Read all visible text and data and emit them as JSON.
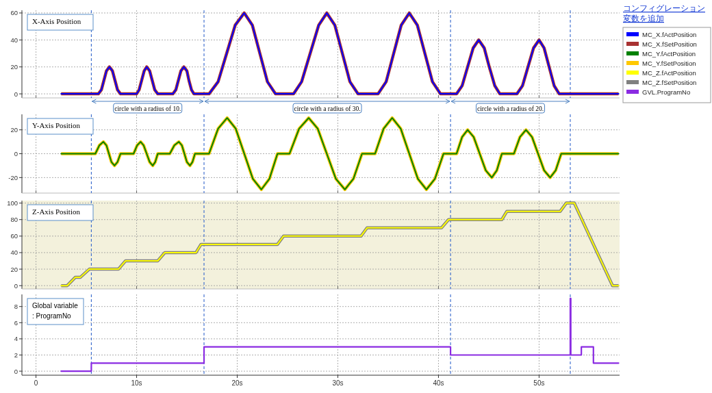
{
  "chart_data": [
    {
      "type": "line",
      "title": "X-Axis Position",
      "xlim": [
        -1.4,
        58
      ],
      "ylim": [
        -3,
        62
      ],
      "xticks": [
        {
          "value": 0,
          "label": null
        },
        {
          "value": 10,
          "label": null
        },
        {
          "value": 20,
          "label": null
        },
        {
          "value": 30,
          "label": null
        },
        {
          "value": 40,
          "label": null
        },
        {
          "value": 50,
          "label": null
        }
      ],
      "yticks": [
        0,
        20,
        40,
        60
      ],
      "tick_labels": "y",
      "grid": true,
      "legend": "right",
      "x": [
        2.5,
        6.2,
        6.5,
        6.75,
        7.0,
        7.3,
        7.6,
        7.85,
        8.1,
        8.4,
        10.0,
        10.25,
        10.5,
        10.75,
        11.0,
        11.3,
        11.55,
        11.8,
        12.1,
        13.6,
        13.9,
        14.15,
        14.4,
        14.7,
        15.0,
        15.2,
        15.45,
        15.7,
        17.2,
        18.1,
        18.95,
        19.8,
        20.7,
        21.5,
        22.25,
        23.0,
        23.8,
        25.6,
        26.4,
        27.25,
        28.1,
        28.9,
        29.7,
        30.45,
        31.2,
        32.0,
        34.0,
        34.8,
        35.55,
        36.3,
        37.1,
        37.9,
        38.65,
        39.4,
        40.2,
        41.8,
        42.35,
        42.9,
        43.45,
        44.0,
        44.55,
        45.05,
        45.6,
        46.1,
        47.8,
        48.35,
        48.9,
        49.45,
        50.0,
        50.5,
        51.0,
        51.5,
        52.0,
        57.9
      ],
      "series": [
        {
          "name": "MC_X.fSetPosition",
          "color": "#a83232",
          "values": [
            0,
            0,
            3,
            10,
            17,
            20,
            17,
            10,
            3,
            0,
            0,
            3,
            10,
            17,
            20,
            17,
            10,
            3,
            0,
            0,
            3,
            10,
            17,
            20,
            17,
            10,
            3,
            0,
            0,
            9,
            30,
            51,
            60,
            51,
            30,
            9,
            0,
            0,
            9,
            30,
            51,
            60,
            51,
            30,
            9,
            0,
            0,
            9,
            30,
            51,
            60,
            51,
            30,
            9,
            0,
            0,
            6,
            20,
            34,
            40,
            34,
            20,
            6,
            0,
            0,
            6,
            20,
            34,
            40,
            34,
            20,
            6,
            0,
            0
          ]
        },
        {
          "name": "MC_X.fActPosition",
          "color": "#0000ff",
          "values": [
            0,
            0,
            3,
            10,
            17,
            20,
            17,
            10,
            3,
            0,
            0,
            3,
            10,
            17,
            20,
            17,
            10,
            3,
            0,
            0,
            3,
            10,
            17,
            20,
            17,
            10,
            3,
            0,
            0,
            9,
            30,
            51,
            60,
            51,
            30,
            9,
            0,
            0,
            9,
            30,
            51,
            60,
            51,
            30,
            9,
            0,
            0,
            9,
            30,
            51,
            60,
            51,
            30,
            9,
            0,
            0,
            6,
            20,
            34,
            40,
            34,
            20,
            6,
            0,
            0,
            6,
            20,
            34,
            40,
            34,
            20,
            6,
            0,
            0
          ]
        }
      ],
      "ref_lines": [
        {
          "axis": "x",
          "value": 5.5,
          "color": "#3366cc",
          "line_style": "dashed"
        },
        {
          "axis": "x",
          "value": 16.7,
          "color": "#3366cc",
          "line_style": "dashed"
        },
        {
          "axis": "x",
          "value": 41.2,
          "color": "#3366cc",
          "line_style": "dashed"
        },
        {
          "axis": "x",
          "value": 53.1,
          "color": "#3366cc",
          "line_style": "dashed"
        }
      ],
      "annotations": [
        "コンフィグレーション",
        "変数を追加"
      ]
    },
    {
      "type": "line",
      "title": "Y-Axis Position",
      "xlim": [
        -1.4,
        58
      ],
      "ylim": [
        -33,
        33
      ],
      "xticks": [
        {
          "value": 0,
          "label": null
        },
        {
          "value": 10,
          "label": null
        },
        {
          "value": 20,
          "label": null
        },
        {
          "value": 30,
          "label": null
        },
        {
          "value": 40,
          "label": null
        },
        {
          "value": 50,
          "label": null
        }
      ],
      "yticks": [
        -20,
        0,
        20
      ],
      "tick_labels": "y",
      "grid": true,
      "legend": "right",
      "x": [
        2.5,
        5.9,
        6.3,
        6.7,
        7.0,
        7.25,
        7.5,
        7.8,
        8.1,
        8.4,
        9.7,
        10.05,
        10.4,
        10.7,
        11.0,
        11.3,
        11.6,
        11.85,
        12.1,
        13.3,
        13.75,
        14.2,
        14.5,
        14.75,
        15.0,
        15.3,
        15.55,
        15.8,
        17.2,
        18.1,
        19.0,
        19.85,
        20.7,
        21.55,
        22.4,
        23.2,
        24.0,
        25.2,
        26.15,
        27.1,
        28.0,
        28.9,
        29.8,
        30.7,
        31.55,
        32.4,
        33.7,
        34.55,
        35.4,
        36.25,
        37.1,
        37.95,
        38.8,
        39.65,
        40.5,
        41.8,
        42.35,
        42.9,
        43.5,
        44.1,
        44.7,
        45.3,
        45.8,
        46.3,
        47.5,
        48.1,
        48.7,
        49.3,
        49.9,
        50.5,
        51.1,
        51.65,
        52.2,
        57.9
      ],
      "series": [
        {
          "name": "MC_Y.fSetPosition",
          "color": "#ffc800",
          "values": [
            0,
            0,
            7,
            10,
            7,
            0,
            -7,
            -10,
            -7,
            0,
            0,
            7,
            10,
            7,
            0,
            -7,
            -10,
            -7,
            0,
            0,
            7,
            10,
            7,
            0,
            -7,
            -10,
            -7,
            0,
            0,
            21,
            30,
            21,
            0,
            -21,
            -30,
            -21,
            0,
            0,
            21,
            30,
            21,
            0,
            -21,
            -30,
            -21,
            0,
            0,
            21,
            30,
            21,
            0,
            -21,
            -30,
            -21,
            0,
            0,
            14,
            20,
            14,
            0,
            -14,
            -20,
            -14,
            0,
            0,
            14,
            20,
            14,
            0,
            -14,
            -20,
            -14,
            0,
            0
          ]
        },
        {
          "name": "MC_Y.fActPosition",
          "color": "#008000",
          "values": [
            0,
            0,
            7,
            10,
            7,
            0,
            -7,
            -10,
            -7,
            0,
            0,
            7,
            10,
            7,
            0,
            -7,
            -10,
            -7,
            0,
            0,
            7,
            10,
            7,
            0,
            -7,
            -10,
            -7,
            0,
            0,
            21,
            30,
            21,
            0,
            -21,
            -30,
            -21,
            0,
            0,
            21,
            30,
            21,
            0,
            -21,
            -30,
            -21,
            0,
            0,
            21,
            30,
            21,
            0,
            -21,
            -30,
            -21,
            0,
            0,
            14,
            20,
            14,
            0,
            -14,
            -20,
            -14,
            0,
            0,
            14,
            20,
            14,
            0,
            -14,
            -20,
            -14,
            0,
            0
          ]
        }
      ],
      "ref_lines": [
        {
          "axis": "x",
          "value": 5.5,
          "color": "#3366cc",
          "line_style": "dashed"
        },
        {
          "axis": "x",
          "value": 16.7,
          "color": "#3366cc",
          "line_style": "dashed"
        },
        {
          "axis": "x",
          "value": 41.2,
          "color": "#3366cc",
          "line_style": "dashed"
        },
        {
          "axis": "x",
          "value": 53.1,
          "color": "#3366cc",
          "line_style": "dashed"
        }
      ],
      "annotations": [
        "circle with a radius of 10.",
        "circle with a radius of 30.",
        "circle with a radius of 20."
      ]
    },
    {
      "type": "line",
      "title": "Z-Axis Position",
      "xlim": [
        -1.4,
        58
      ],
      "ylim": [
        -4,
        103
      ],
      "xticks": [
        {
          "value": 0,
          "label": null
        },
        {
          "value": 10,
          "label": null
        },
        {
          "value": 20,
          "label": null
        },
        {
          "value": 30,
          "label": null
        },
        {
          "value": 40,
          "label": null
        },
        {
          "value": 50,
          "label": null
        }
      ],
      "yticks": [
        0,
        20,
        40,
        60,
        80,
        100
      ],
      "tick_labels": "y",
      "grid": true,
      "legend": "right",
      "x": [
        2.5,
        3.1,
        3.9,
        4.4,
        5.3,
        8.2,
        8.9,
        12.1,
        12.8,
        15.9,
        16.4,
        24.0,
        24.6,
        32.3,
        32.9,
        40.3,
        41.0,
        46.3,
        46.8,
        52.1,
        52.7,
        53.5,
        57.3,
        57.9
      ],
      "series": [
        {
          "name": "MC_Z.fSetPosition",
          "color": "#808080",
          "values": [
            0,
            0,
            10,
            10,
            20,
            20,
            30,
            30,
            40,
            40,
            50,
            50,
            60,
            60,
            70,
            70,
            80,
            80,
            90,
            90,
            100,
            100,
            0,
            0
          ]
        },
        {
          "name": "MC_Z.fActPosition",
          "color": "#ffff00",
          "values": [
            0,
            0,
            10,
            10,
            20,
            20,
            30,
            30,
            40,
            40,
            50,
            50,
            60,
            60,
            70,
            70,
            80,
            80,
            90,
            90,
            100,
            100,
            0,
            0
          ]
        }
      ],
      "bands": [
        {
          "axis": "y",
          "from": -4,
          "to": 103,
          "color": "#f3f1dc"
        }
      ],
      "ref_lines": [
        {
          "axis": "x",
          "value": 5.5,
          "color": "#3366cc",
          "line_style": "dashed"
        },
        {
          "axis": "x",
          "value": 16.7,
          "color": "#3366cc",
          "line_style": "dashed"
        },
        {
          "axis": "x",
          "value": 41.2,
          "color": "#3366cc",
          "line_style": "dashed"
        },
        {
          "axis": "x",
          "value": 53.1,
          "color": "#3366cc",
          "line_style": "dashed"
        }
      ]
    },
    {
      "type": "step",
      "title": "Global variable\n: ProgramNo",
      "xlim": [
        -1.4,
        58
      ],
      "ylim": [
        -0.5,
        9.5
      ],
      "xticks": [
        0,
        {
          "value": 10,
          "label": "10s"
        },
        {
          "value": 20,
          "label": "20s"
        },
        {
          "value": 30,
          "label": "30s"
        },
        {
          "value": 40,
          "label": "40s"
        },
        {
          "value": 50,
          "label": "50s"
        }
      ],
      "yticks": [
        0,
        2,
        4,
        6,
        8
      ],
      "grid": true,
      "legend": "right",
      "x": [
        2.5,
        5.5,
        16.7,
        41.2,
        53.1,
        53.15,
        54.2,
        55.4,
        57.9
      ],
      "series": [
        {
          "name": "GVL.ProgramNo",
          "color": "#8a2be2",
          "values": [
            0,
            1,
            3,
            2,
            9,
            2,
            3,
            1,
            1
          ]
        }
      ],
      "ref_lines": [
        {
          "axis": "x",
          "value": 5.5,
          "color": "#3366cc",
          "line_style": "dashed"
        },
        {
          "axis": "x",
          "value": 16.7,
          "color": "#3366cc",
          "line_style": "dashed"
        },
        {
          "axis": "x",
          "value": 41.2,
          "color": "#3366cc",
          "line_style": "dashed"
        },
        {
          "axis": "x",
          "value": 53.1,
          "color": "#3366cc",
          "line_style": "dashed"
        }
      ]
    }
  ]
}
